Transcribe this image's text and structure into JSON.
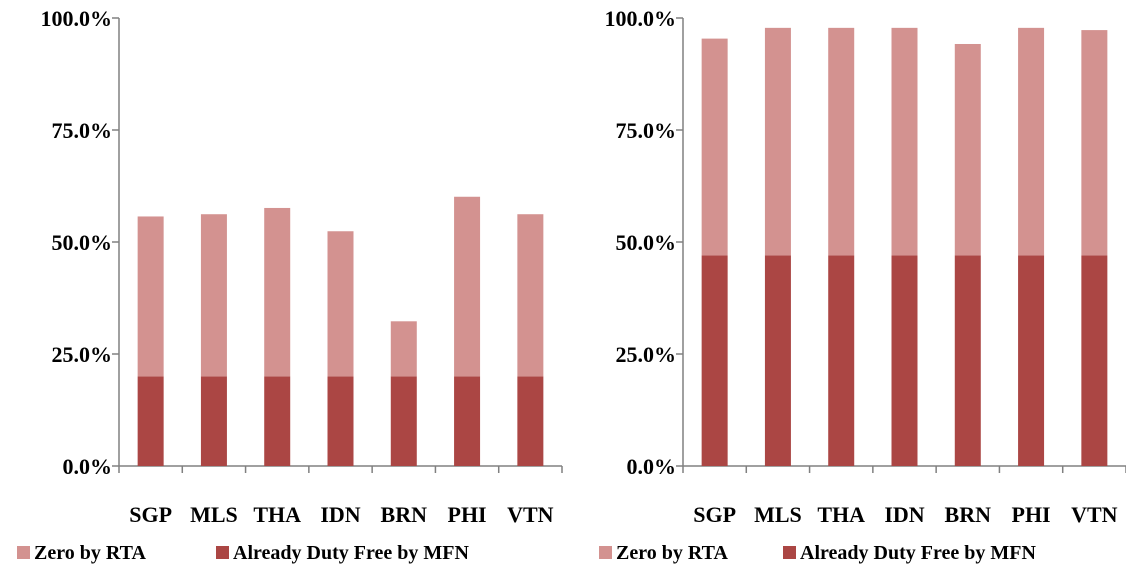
{
  "colors": {
    "zero_by_rta": "#d39290",
    "already_duty_free": "#ab4644",
    "axis": "#808080"
  },
  "chart_data": [
    {
      "type": "bar",
      "stacked": true,
      "categories": [
        "SGP",
        "MLS",
        "THA",
        "IDN",
        "BRN",
        "PHI",
        "VTN"
      ],
      "ylim": [
        0,
        100
      ],
      "yticks": [
        "0.0%",
        "25.0%",
        "50.0%",
        "75.0%",
        "100.0%"
      ],
      "ytick_values": [
        0,
        25,
        50,
        75,
        100
      ],
      "series": [
        {
          "name": "Already Duty Free by MFN",
          "values": [
            20,
            20,
            20,
            20,
            20,
            20,
            20
          ]
        },
        {
          "name": "Zero by RTA",
          "values": [
            35.7,
            36.2,
            37.6,
            32.4,
            12.3,
            40.1,
            36.2
          ]
        }
      ],
      "legend": {
        "position": "bottom-left",
        "items": [
          "Zero by RTA",
          "Already Duty Free by MFN"
        ]
      }
    },
    {
      "type": "bar",
      "stacked": true,
      "categories": [
        "SGP",
        "MLS",
        "THA",
        "IDN",
        "BRN",
        "PHI",
        "VTN"
      ],
      "ylim": [
        0,
        100
      ],
      "yticks": [
        "0.0%",
        "25.0%",
        "50.0%",
        "75.0%",
        "100.0%"
      ],
      "ytick_values": [
        0,
        25,
        50,
        75,
        100
      ],
      "series": [
        {
          "name": "Already Duty Free by MFN",
          "values": [
            47,
            47,
            47,
            47,
            47,
            47,
            47
          ]
        },
        {
          "name": "Zero by RTA",
          "values": [
            48.4,
            50.8,
            50.8,
            50.8,
            47.2,
            50.8,
            50.3
          ]
        }
      ],
      "legend": {
        "position": "bottom-left",
        "items": [
          "Zero by RTA",
          "Already Duty Free by MFN"
        ]
      }
    }
  ]
}
